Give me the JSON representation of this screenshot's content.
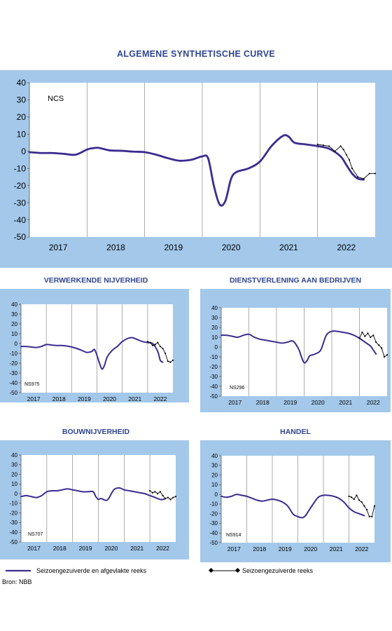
{
  "title": "ALGEMENE SYNTHETISCHE CURVE",
  "colors": {
    "panel": "#a3c8ea",
    "plot": "#ffffff",
    "smoothed": "#3b2c8f",
    "raw": "#000000",
    "title": "#2e4591"
  },
  "chart_data": [
    {
      "id": "main",
      "type": "line",
      "title": "",
      "label": "NCS",
      "ylim": [
        -50,
        40
      ],
      "yticks": [
        40,
        30,
        20,
        10,
        0,
        -10,
        -20,
        -30,
        -40,
        -50
      ],
      "xlim": [
        2016.6,
        2022.6
      ],
      "years": [
        "2017",
        "2018",
        "2019",
        "2020",
        "2021",
        "2022"
      ],
      "year_dividers": [
        2017.6,
        2018.6,
        2019.6,
        2020.6,
        2021.6
      ],
      "series": [
        {
          "role": "smoothed",
          "x": [
            2016.6,
            2016.8,
            2017.0,
            2017.2,
            2017.4,
            2017.6,
            2017.7,
            2017.8,
            2018.0,
            2018.2,
            2018.4,
            2018.6,
            2018.8,
            2019.0,
            2019.2,
            2019.4,
            2019.5,
            2019.6,
            2019.7,
            2019.8,
            2019.9,
            2020.0,
            2020.1,
            2020.2,
            2020.4,
            2020.6,
            2020.8,
            2021.0,
            2021.1,
            2021.2,
            2021.4,
            2021.6,
            2021.8,
            2022.0,
            2022.1,
            2022.2,
            2022.3,
            2022.4
          ],
          "y": [
            -0.5,
            -1,
            -1,
            -1.5,
            -2,
            1,
            1.8,
            2,
            0.5,
            0.3,
            -0.2,
            -0.5,
            -2,
            -4,
            -5.5,
            -5,
            -4,
            -3,
            -4,
            -20,
            -31,
            -29,
            -16,
            -12,
            -10,
            -6,
            3,
            9,
            8.5,
            5,
            4,
            3,
            1.5,
            -3,
            -8,
            -13,
            -16,
            -16.5
          ]
        },
        {
          "role": "raw",
          "x": [
            2021.6,
            2021.7,
            2021.8,
            2021.9,
            2022.0,
            2022.05,
            2022.1,
            2022.15,
            2022.2,
            2022.3,
            2022.4,
            2022.5,
            2022.6
          ],
          "y": [
            4,
            3.5,
            3,
            0,
            3,
            1,
            -2,
            -5,
            -10,
            -15,
            -16,
            -13,
            -13
          ]
        }
      ]
    },
    {
      "id": "ns975",
      "type": "line",
      "title": "VERWERKENDE NIJVERHEID",
      "label": "NS975",
      "ylim": [
        -50,
        40
      ],
      "yticks": [
        40,
        30,
        20,
        10,
        0,
        -10,
        -20,
        -30,
        -40,
        -50
      ],
      "xlim": [
        2016.6,
        2022.6
      ],
      "years": [
        "2017",
        "2018",
        "2019",
        "2020",
        "2021",
        "2022"
      ],
      "year_dividers": [
        2017.6,
        2018.6,
        2019.6,
        2020.6,
        2021.6
      ],
      "series": [
        {
          "role": "smoothed",
          "x": [
            2016.6,
            2016.8,
            2017.0,
            2017.2,
            2017.4,
            2017.6,
            2017.8,
            2018.0,
            2018.2,
            2018.4,
            2018.6,
            2018.8,
            2019.0,
            2019.2,
            2019.4,
            2019.5,
            2019.6,
            2019.7,
            2019.8,
            2019.9,
            2020.0,
            2020.2,
            2020.4,
            2020.6,
            2020.8,
            2021.0,
            2021.2,
            2021.4,
            2021.6,
            2021.8,
            2022.0,
            2022.1,
            2022.2
          ],
          "y": [
            -3,
            -3,
            -3.5,
            -4,
            -3,
            -1,
            -1.5,
            -2,
            -2,
            -2.5,
            -3.5,
            -5,
            -7,
            -9,
            -8,
            -6,
            -12,
            -20,
            -26,
            -22,
            -14,
            -7,
            -3,
            2,
            5,
            6,
            4,
            2,
            1,
            0,
            -8,
            -17,
            -19
          ]
        },
        {
          "role": "raw",
          "x": [
            2021.6,
            2021.7,
            2021.8,
            2021.9,
            2022.0,
            2022.1,
            2022.2,
            2022.3,
            2022.4,
            2022.5,
            2022.6
          ],
          "y": [
            2,
            1,
            -2,
            -1,
            1,
            -3,
            -5,
            -10,
            -18,
            -19,
            -17
          ]
        }
      ]
    },
    {
      "id": "ns296",
      "type": "line",
      "title": "DIENSTVERLENING AAN BEDRIJVEN",
      "label": "NS296",
      "ylim": [
        -50,
        40
      ],
      "yticks": [
        40,
        30,
        20,
        10,
        0,
        -10,
        -20,
        -30,
        -40,
        -50
      ],
      "xlim": [
        2016.6,
        2022.6
      ],
      "years": [
        "2017",
        "2018",
        "2019",
        "2020",
        "2021",
        "2022"
      ],
      "year_dividers": [
        2017.6,
        2018.6,
        2019.6,
        2020.6,
        2021.6
      ],
      "series": [
        {
          "role": "smoothed",
          "x": [
            2016.6,
            2016.8,
            2017.0,
            2017.2,
            2017.4,
            2017.6,
            2017.8,
            2018.0,
            2018.2,
            2018.4,
            2018.6,
            2018.8,
            2019.0,
            2019.2,
            2019.4,
            2019.5,
            2019.6,
            2019.7,
            2019.8,
            2019.9,
            2020.0,
            2020.2,
            2020.4,
            2020.6,
            2020.8,
            2021.0,
            2021.2,
            2021.4,
            2021.6,
            2021.8,
            2022.0,
            2022.1,
            2022.2
          ],
          "y": [
            12,
            12,
            11,
            10,
            12,
            13,
            10,
            8,
            7,
            6,
            5,
            4,
            5,
            6,
            -2,
            -10,
            -16,
            -14,
            -9,
            -8,
            -7,
            -3,
            12,
            16,
            16,
            15,
            14,
            12,
            9,
            5,
            1,
            -3,
            -7
          ]
        },
        {
          "role": "raw",
          "x": [
            2021.6,
            2021.7,
            2021.8,
            2021.9,
            2022.0,
            2022.1,
            2022.2,
            2022.3,
            2022.4,
            2022.5,
            2022.6
          ],
          "y": [
            9,
            15,
            11,
            14,
            10,
            12,
            5,
            2,
            -1,
            -10,
            -8
          ]
        }
      ]
    },
    {
      "id": "ns707",
      "type": "line",
      "title": "BOUWNIJVERHEID",
      "label": "NS707",
      "ylim": [
        -50,
        40
      ],
      "yticks": [
        40,
        30,
        20,
        10,
        0,
        -10,
        -20,
        -30,
        -40,
        -50
      ],
      "xlim": [
        2016.6,
        2022.6
      ],
      "years": [
        "2017",
        "2018",
        "2019",
        "2020",
        "2021",
        "2022"
      ],
      "year_dividers": [
        2017.6,
        2018.6,
        2019.6,
        2020.6,
        2021.6
      ],
      "series": [
        {
          "role": "smoothed",
          "x": [
            2016.6,
            2016.8,
            2017.0,
            2017.2,
            2017.4,
            2017.6,
            2017.8,
            2018.0,
            2018.2,
            2018.4,
            2018.6,
            2018.8,
            2019.0,
            2019.2,
            2019.4,
            2019.5,
            2019.6,
            2019.7,
            2019.8,
            2019.9,
            2020.0,
            2020.2,
            2020.4,
            2020.6,
            2020.8,
            2021.0,
            2021.2,
            2021.4,
            2021.6,
            2021.8,
            2022.0,
            2022.1,
            2022.2
          ],
          "y": [
            -3,
            -2,
            -3,
            -4,
            -2,
            2,
            3,
            3,
            4,
            5,
            4,
            3,
            2,
            2,
            2,
            -3,
            -6,
            -5,
            -6,
            -7,
            -5,
            4,
            6,
            4,
            3,
            2,
            1,
            0,
            -2,
            -4,
            -6,
            -6,
            -5
          ]
        },
        {
          "role": "raw",
          "x": [
            2021.6,
            2021.7,
            2021.8,
            2021.9,
            2022.0,
            2022.1,
            2022.2,
            2022.3,
            2022.4,
            2022.5,
            2022.6
          ],
          "y": [
            3,
            1,
            2,
            0,
            2,
            -2,
            -5,
            -4,
            -6,
            -4,
            -3
          ]
        }
      ]
    },
    {
      "id": "ns914",
      "type": "line",
      "title": "HANDEL",
      "label": "NS914",
      "ylim": [
        -50,
        40
      ],
      "yticks": [
        40,
        30,
        20,
        10,
        0,
        -10,
        -20,
        -30,
        -40,
        -50
      ],
      "xlim": [
        2016.6,
        2022.6
      ],
      "years": [
        "2017",
        "2018",
        "2019",
        "2020",
        "2021",
        "2022"
      ],
      "year_dividers": [
        2017.6,
        2018.6,
        2019.6,
        2020.6,
        2021.6
      ],
      "series": [
        {
          "role": "smoothed",
          "x": [
            2016.6,
            2016.8,
            2017.0,
            2017.2,
            2017.4,
            2017.6,
            2017.8,
            2018.0,
            2018.2,
            2018.4,
            2018.6,
            2018.8,
            2019.0,
            2019.2,
            2019.4,
            2019.5,
            2019.6,
            2019.7,
            2019.8,
            2019.9,
            2020.0,
            2020.2,
            2020.4,
            2020.6,
            2020.8,
            2021.0,
            2021.2,
            2021.4,
            2021.6,
            2021.8,
            2022.0,
            2022.1,
            2022.2
          ],
          "y": [
            -2,
            -3,
            -2,
            0,
            -1,
            -2,
            -4,
            -6,
            -7,
            -6,
            -5,
            -6,
            -8,
            -12,
            -20,
            -22,
            -23,
            -24,
            -24,
            -22,
            -18,
            -10,
            -3,
            -1,
            -1,
            -2,
            -4,
            -8,
            -14,
            -18,
            -20,
            -21,
            -22
          ]
        },
        {
          "role": "raw",
          "x": [
            2021.6,
            2021.7,
            2021.8,
            2021.9,
            2022.0,
            2022.1,
            2022.2,
            2022.3,
            2022.4,
            2022.5,
            2022.6
          ],
          "y": [
            -2,
            -3,
            -5,
            -1,
            -6,
            -8,
            -12,
            -16,
            -23,
            -23,
            -12
          ]
        }
      ]
    }
  ],
  "legend": {
    "smoothed": "Seizoengezuiverde en afgevlakte reeks",
    "raw": "Seizoengezuiverde reeks"
  },
  "source": "Bron: NBB"
}
